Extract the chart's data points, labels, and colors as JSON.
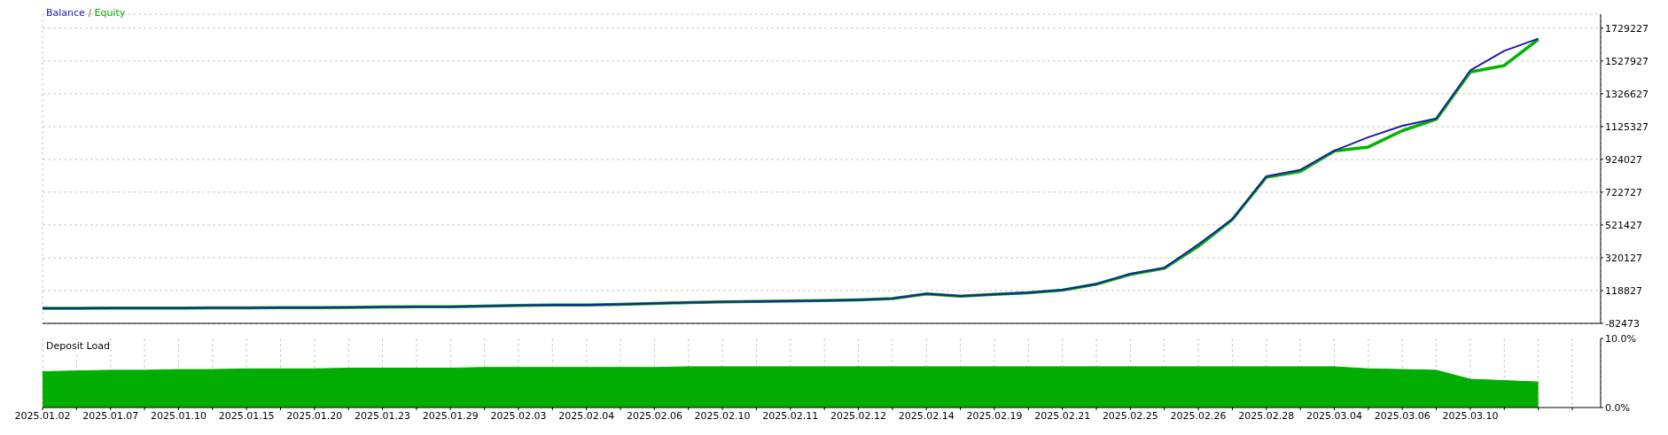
{
  "chart_data": [
    {
      "type": "line",
      "legend": "top left",
      "grid": true,
      "tick_labels": "y",
      "annotations": [
        "/"
      ],
      "categories": [
        "2025.01.02",
        null,
        "2025.01.07",
        null,
        "2025.01.10",
        null,
        "2025.01.15",
        null,
        "2025.01.20",
        null,
        "2025.01.23",
        null,
        "2025.01.29",
        null,
        "2025.02.03",
        null,
        "2025.02.04",
        null,
        "2025.02.06",
        null,
        "2025.02.10",
        null,
        "2025.02.11",
        null,
        "2025.02.12",
        null,
        "2025.02.14",
        null,
        "2025.02.19",
        null,
        "2025.02.21",
        null,
        "2025.02.25",
        null,
        "2025.02.26",
        null,
        "2025.02.28",
        null,
        "2025.03.04",
        null,
        "2025.03.06",
        null,
        "2025.03.10",
        null,
        null,
        null
      ],
      "ylim": [
        -82473,
        1815000
      ],
      "yticks": [
        -82473,
        118827,
        320127,
        521427,
        722727,
        924027,
        1125327,
        1326627,
        1527927,
        1729227
      ],
      "series": [
        {
          "name": "Balance",
          "color": "#1c1ca8",
          "values": [
            10000,
            10000,
            11000,
            11000,
            11000,
            12000,
            13000,
            14000,
            14000,
            16000,
            18000,
            19000,
            20000,
            24000,
            27000,
            30000,
            30000,
            35000,
            40000,
            45000,
            50000,
            52000,
            55000,
            58000,
            62000,
            70000,
            100000,
            85000,
            95000,
            107000,
            123000,
            159000,
            222000,
            258000,
            402000,
            557000,
            820000,
            860000,
            977000,
            1060000,
            1130000,
            1175000,
            1470000,
            1590000,
            1665000,
            null
          ]
        },
        {
          "name": "Equity",
          "color": "#00b400",
          "values": [
            10000,
            10000,
            11000,
            11000,
            11000,
            12000,
            13000,
            14000,
            14000,
            16000,
            18000,
            19000,
            20000,
            24000,
            27000,
            30000,
            30000,
            35000,
            40000,
            45000,
            50000,
            52000,
            55000,
            58000,
            62000,
            70000,
            98000,
            85000,
            95000,
            105000,
            121000,
            158000,
            218000,
            256000,
            390000,
            555000,
            815000,
            850000,
            975000,
            1000000,
            1100000,
            1170000,
            1460000,
            1500000,
            1660000,
            null
          ]
        }
      ]
    },
    {
      "type": "area",
      "title": "Deposit Load",
      "grid": "x",
      "categories": [
        "2025.01.02",
        null,
        "2025.01.07",
        null,
        "2025.01.10",
        null,
        "2025.01.15",
        null,
        "2025.01.20",
        null,
        "2025.01.23",
        null,
        "2025.01.29",
        null,
        "2025.02.03",
        null,
        "2025.02.04",
        null,
        "2025.02.06",
        null,
        "2025.02.10",
        null,
        "2025.02.11",
        null,
        "2025.02.12",
        null,
        "2025.02.14",
        null,
        "2025.02.19",
        null,
        "2025.02.21",
        null,
        "2025.02.25",
        null,
        "2025.02.26",
        null,
        "2025.02.28",
        null,
        "2025.03.04",
        null,
        "2025.03.06",
        null,
        "2025.03.10",
        null,
        null,
        null
      ],
      "ylim": [
        0,
        10
      ],
      "yticks": [
        {
          "value": 0,
          "label": "0.0%"
        },
        {
          "value": 10,
          "label": "10.0%"
        }
      ],
      "series": [
        {
          "color": "#00ad00",
          "values": [
            5.2,
            5.3,
            5.4,
            5.4,
            5.5,
            5.5,
            5.6,
            5.6,
            5.6,
            5.7,
            5.7,
            5.7,
            5.7,
            5.8,
            5.8,
            5.8,
            5.8,
            5.8,
            5.8,
            5.9,
            5.9,
            5.9,
            5.9,
            5.9,
            5.9,
            5.9,
            5.9,
            5.9,
            5.9,
            5.9,
            5.9,
            5.9,
            5.9,
            5.9,
            5.9,
            5.9,
            5.9,
            5.9,
            5.9,
            5.6,
            5.5,
            5.4,
            4.1,
            3.9,
            3.7,
            null
          ]
        }
      ]
    }
  ]
}
